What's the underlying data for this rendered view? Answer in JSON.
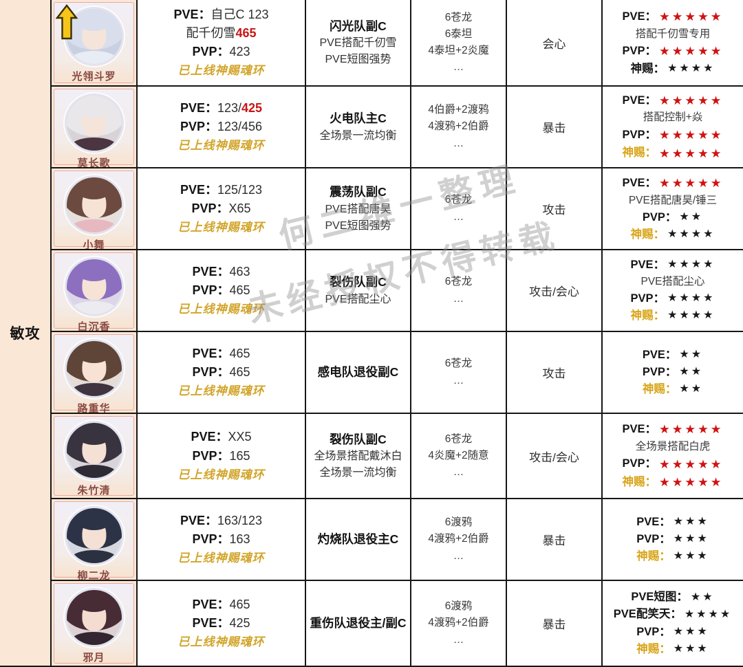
{
  "group_label": "敏攻",
  "watermark": {
    "line1": "何二维一整理",
    "line2": "未经授权不得转载"
  },
  "colors": {
    "accent_red": "#c81414",
    "gold_text": "#d2a42a",
    "gold_label": "#d8a418",
    "star_red": "#cf1212",
    "star_black": "#1a1a1a",
    "peach_bg": "#fbe7d6"
  },
  "rows": [
    {
      "name": "光翎斗罗",
      "promoted": true,
      "avatar": {
        "hair": "#d9deec",
        "skin": "#f4e4d9",
        "cloth": "#e7ecf5",
        "bg": "#c9d1e1"
      },
      "stats": [
        [
          {
            "t": "PVE：",
            "s": "lb"
          },
          {
            "t": "自己C 123",
            "s": "tx"
          }
        ],
        [
          {
            "t": "配千仞雪",
            "s": "tx"
          },
          {
            "t": "465",
            "s": "rd"
          }
        ],
        [
          {
            "t": "PVP：",
            "s": "lb"
          },
          {
            "t": "423",
            "s": "tx"
          }
        ],
        [
          {
            "t": "已上线神赐魂环",
            "s": "gd"
          }
        ]
      ],
      "role": [
        {
          "t": "闪光队副C",
          "b": true
        },
        {
          "t": "PVE搭配千仞雪"
        },
        {
          "t": "PVE短图强势"
        }
      ],
      "team": [
        "6苍龙",
        "6泰坦",
        "4泰坦+2炎魔",
        "…"
      ],
      "type": "会心",
      "ratings": [
        {
          "label": "PVE：",
          "stars": "★★★★★",
          "red": true
        },
        {
          "note": "搭配千仞雪专用"
        },
        {
          "label": "PVP：",
          "stars": "★★★★★",
          "red": true
        },
        {
          "label": "神赐：",
          "stars": "★★★★"
        }
      ]
    },
    {
      "name": "莫长歌",
      "promoted": false,
      "avatar": {
        "hair": "#e9e7ea",
        "skin": "#f4e4d9",
        "cloth": "#4a3540",
        "bg": "#d8d3d6"
      },
      "stats": [
        [
          {
            "t": "PVE：",
            "s": "lb"
          },
          {
            "t": "123/",
            "s": "tx"
          },
          {
            "t": "425",
            "s": "rd"
          }
        ],
        [
          {
            "t": "PVP：",
            "s": "lb"
          },
          {
            "t": "123/456",
            "s": "tx"
          }
        ],
        [
          {
            "t": "已上线神赐魂环",
            "s": "gd"
          }
        ]
      ],
      "role": [
        {
          "t": "火电队主C",
          "b": true
        },
        {
          "t": "全场景一流均衡"
        }
      ],
      "team": [
        "4伯爵+2渡鸦",
        "4渡鸦+2伯爵",
        "…"
      ],
      "type": "暴击",
      "ratings": [
        {
          "label": "PVE：",
          "stars": "★★★★★",
          "red": true
        },
        {
          "note": "搭配控制+焱"
        },
        {
          "label": "PVP：",
          "stars": "★★★★★",
          "red": true
        },
        {
          "label": "神赐：",
          "gold": true,
          "stars": "★★★★★",
          "red": true
        }
      ]
    },
    {
      "name": "小舞",
      "promoted": false,
      "avatar": {
        "hair": "#6d4a3f",
        "skin": "#f6e3d6",
        "cloth": "#e8b8c0",
        "bg": "#e7dfdb"
      },
      "stats": [
        [
          {
            "t": "PVE：",
            "s": "lb"
          },
          {
            "t": "125/123",
            "s": "tx"
          }
        ],
        [
          {
            "t": "PVP：",
            "s": "lb"
          },
          {
            "t": "X65",
            "s": "tx"
          }
        ],
        [
          {
            "t": "已上线神赐魂环",
            "s": "gd"
          }
        ]
      ],
      "role": [
        {
          "t": "震荡队副C",
          "b": true
        },
        {
          "t": "PVE搭配唐昊"
        },
        {
          "t": "PVE短图强势"
        }
      ],
      "team": [
        "6苍龙",
        "…"
      ],
      "type": "攻击",
      "ratings": [
        {
          "label": "PVE：",
          "stars": "★★★★★",
          "red": true
        },
        {
          "note": "PVE搭配唐昊/锤三"
        },
        {
          "label": "PVP：",
          "stars": "★★"
        },
        {
          "label": "神赐：",
          "gold": true,
          "stars": "★★★★"
        }
      ]
    },
    {
      "name": "白沉香",
      "promoted": false,
      "avatar": {
        "hair": "#8d6fc0",
        "skin": "#f6e3d6",
        "cloth": "#ececf0",
        "bg": "#ddd6e8"
      },
      "stats": [
        [
          {
            "t": "PVE：",
            "s": "lb"
          },
          {
            "t": "463",
            "s": "tx"
          }
        ],
        [
          {
            "t": "PVP：",
            "s": "lb"
          },
          {
            "t": "465",
            "s": "tx"
          }
        ],
        [
          {
            "t": "已上线神赐魂环",
            "s": "gd"
          }
        ]
      ],
      "role": [
        {
          "t": "裂伤队副C",
          "b": true
        },
        {
          "t": "PVE搭配尘心"
        }
      ],
      "team": [
        "6苍龙",
        "…"
      ],
      "type": "攻击/会心",
      "ratings": [
        {
          "label": "PVE：",
          "stars": "★★★★"
        },
        {
          "note": "PVE搭配尘心"
        },
        {
          "label": "PVP：",
          "stars": "★★★★"
        },
        {
          "label": "神赐：",
          "gold": true,
          "stars": "★★★★"
        }
      ]
    },
    {
      "name": "路重华",
      "promoted": false,
      "avatar": {
        "hair": "#5f4538",
        "skin": "#f7e2d4",
        "cloth": "#3f3440",
        "bg": "#e5dcd6"
      },
      "stats": [
        [
          {
            "t": "PVE：",
            "s": "lb"
          },
          {
            "t": "465",
            "s": "tx"
          }
        ],
        [
          {
            "t": "PVP：",
            "s": "lb"
          },
          {
            "t": "465",
            "s": "tx"
          }
        ],
        [
          {
            "t": "已上线神赐魂环",
            "s": "gd"
          }
        ]
      ],
      "role": [
        {
          "t": "感电队退役副C",
          "b": true
        }
      ],
      "team": [
        "6苍龙",
        "…"
      ],
      "type": "攻击",
      "ratings": [
        {
          "label": "PVE：",
          "stars": "★★"
        },
        {
          "label": "PVP：",
          "stars": "★★"
        },
        {
          "label": "神赐：",
          "gold": true,
          "stars": "★★"
        }
      ]
    },
    {
      "name": "朱竹清",
      "promoted": false,
      "avatar": {
        "hair": "#39333f",
        "skin": "#f4e0d4",
        "cloth": "#2f2b35",
        "bg": "#d9d4da"
      },
      "stats": [
        [
          {
            "t": "PVE：",
            "s": "lb"
          },
          {
            "t": "XX5",
            "s": "tx"
          }
        ],
        [
          {
            "t": "PVP：",
            "s": "lb"
          },
          {
            "t": "165",
            "s": "tx"
          }
        ],
        [
          {
            "t": "已上线神赐魂环",
            "s": "gd"
          }
        ]
      ],
      "role": [
        {
          "t": "裂伤队副C",
          "b": true
        },
        {
          "t": "全场景搭配戴沐白"
        },
        {
          "t": "全场景一流均衡"
        }
      ],
      "team": [
        "6苍龙",
        "4炎魔+2随意",
        "…"
      ],
      "type": "攻击/会心",
      "ratings": [
        {
          "label": "PVE：",
          "stars": "★★★★★",
          "red": true
        },
        {
          "note": "全场景搭配白虎"
        },
        {
          "label": "PVP：",
          "stars": "★★★★★",
          "red": true
        },
        {
          "label": "神赐：",
          "gold": true,
          "stars": "★★★★★",
          "red": true
        }
      ]
    },
    {
      "name": "柳二龙",
      "promoted": false,
      "avatar": {
        "hair": "#2d3346",
        "skin": "#f4e0d4",
        "cloth": "#2c3142",
        "bg": "#d6d8e0"
      },
      "stats": [
        [
          {
            "t": "PVE：",
            "s": "lb"
          },
          {
            "t": "163/123",
            "s": "tx"
          }
        ],
        [
          {
            "t": "PVP：",
            "s": "lb"
          },
          {
            "t": "163",
            "s": "tx"
          }
        ],
        [
          {
            "t": "已上线神赐魂环",
            "s": "gd"
          }
        ]
      ],
      "role": [
        {
          "t": "灼烧队退役主C",
          "b": true
        }
      ],
      "team": [
        "6渡鸦",
        "4渡鸦+2伯爵",
        "…"
      ],
      "type": "暴击",
      "ratings": [
        {
          "label": "PVE：",
          "stars": "★★★"
        },
        {
          "label": "PVP：",
          "stars": "★★★"
        },
        {
          "label": "神赐：",
          "gold": true,
          "stars": "★★★"
        }
      ]
    },
    {
      "name": "邪月",
      "promoted": false,
      "avatar": {
        "hair": "#472b35",
        "skin": "#f4ddd0",
        "cloth": "#332630",
        "bg": "#dcd2d4"
      },
      "stats": [
        [
          {
            "t": "PVE：",
            "s": "lb"
          },
          {
            "t": "465",
            "s": "tx"
          }
        ],
        [
          {
            "t": "PVE：",
            "s": "lb"
          },
          {
            "t": "425",
            "s": "tx"
          }
        ],
        [
          {
            "t": "已上线神赐魂环",
            "s": "gd"
          }
        ]
      ],
      "role": [
        {
          "t": "重伤队退役主/副C",
          "b": true
        }
      ],
      "team": [
        "6渡鸦",
        "4渡鸦+2伯爵",
        "…"
      ],
      "type": "暴击",
      "ratings": [
        {
          "label": "PVE短图：",
          "stars": "★★"
        },
        {
          "label": "PVE配笑天：",
          "stars": "★★★★"
        },
        {
          "label": "PVP：",
          "stars": "★★★"
        },
        {
          "label": "神赐：",
          "gold": true,
          "stars": "★★★"
        }
      ]
    }
  ]
}
